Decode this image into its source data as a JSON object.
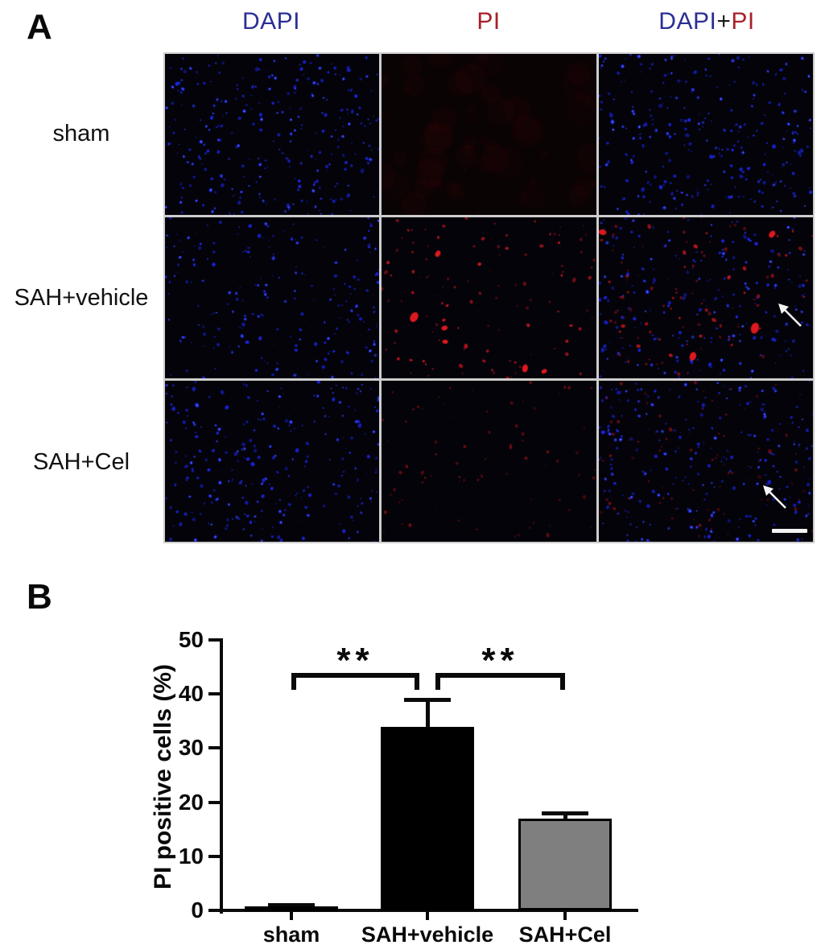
{
  "panel_a": {
    "label": "A",
    "column_headers": [
      {
        "text": "DAPI",
        "color": "#2b2f94"
      },
      {
        "text": "PI",
        "color": "#a8202c"
      },
      {
        "parts": [
          {
            "text": "DAPI",
            "color": "#2b2f94"
          },
          {
            "text": "+",
            "color": "#1a1a1a"
          },
          {
            "text": "PI",
            "color": "#a8202c"
          }
        ]
      }
    ],
    "rows": [
      {
        "label": "sham",
        "cells": [
          {
            "id": "sham-dapi",
            "blue": 280,
            "red": 0
          },
          {
            "id": "sham-pi",
            "blue": 0,
            "red": 0,
            "haze": true
          },
          {
            "id": "sham-merge",
            "blue": 280,
            "red": 0
          }
        ]
      },
      {
        "label": "SAH+vehicle",
        "cells": [
          {
            "id": "vehicle-dapi",
            "blue": 215,
            "red": 0
          },
          {
            "id": "vehicle-pi",
            "blue": 0,
            "red": 125,
            "blobs": 6
          },
          {
            "id": "vehicle-merge",
            "blue": 215,
            "red": 105,
            "blobs": 4,
            "arrow": {
              "x": 223,
              "y": 107
            }
          }
        ]
      },
      {
        "label": "SAH+Cel",
        "cells": [
          {
            "id": "cel-dapi",
            "blue": 255,
            "red": 0
          },
          {
            "id": "cel-pi",
            "blue": 0,
            "red": 85,
            "dim": true
          },
          {
            "id": "cel-merge",
            "blue": 250,
            "red": 85,
            "dim": true,
            "arrow": {
              "x": 204,
              "y": 130
            },
            "scalebar": true
          }
        ]
      }
    ]
  },
  "panel_b": {
    "label": "B"
  },
  "chart_data": {
    "type": "bar",
    "categories": [
      "sham",
      "SAH+vehicle",
      "SAH+Cel"
    ],
    "values": [
      0.7,
      34,
      17
    ],
    "errors": [
      0.3,
      5,
      1
    ],
    "bar_colors": [
      "#000000",
      "#000000",
      "#7f7f7f"
    ],
    "title": "",
    "xlabel": "",
    "ylabel": "PI positive cells (%)",
    "ylim": [
      0,
      50
    ],
    "yticks": [
      0,
      10,
      20,
      30,
      40,
      50
    ],
    "grid": false,
    "significance": [
      {
        "from": 0,
        "to": 1,
        "label": "**"
      },
      {
        "from": 1,
        "to": 2,
        "label": "**"
      }
    ]
  }
}
